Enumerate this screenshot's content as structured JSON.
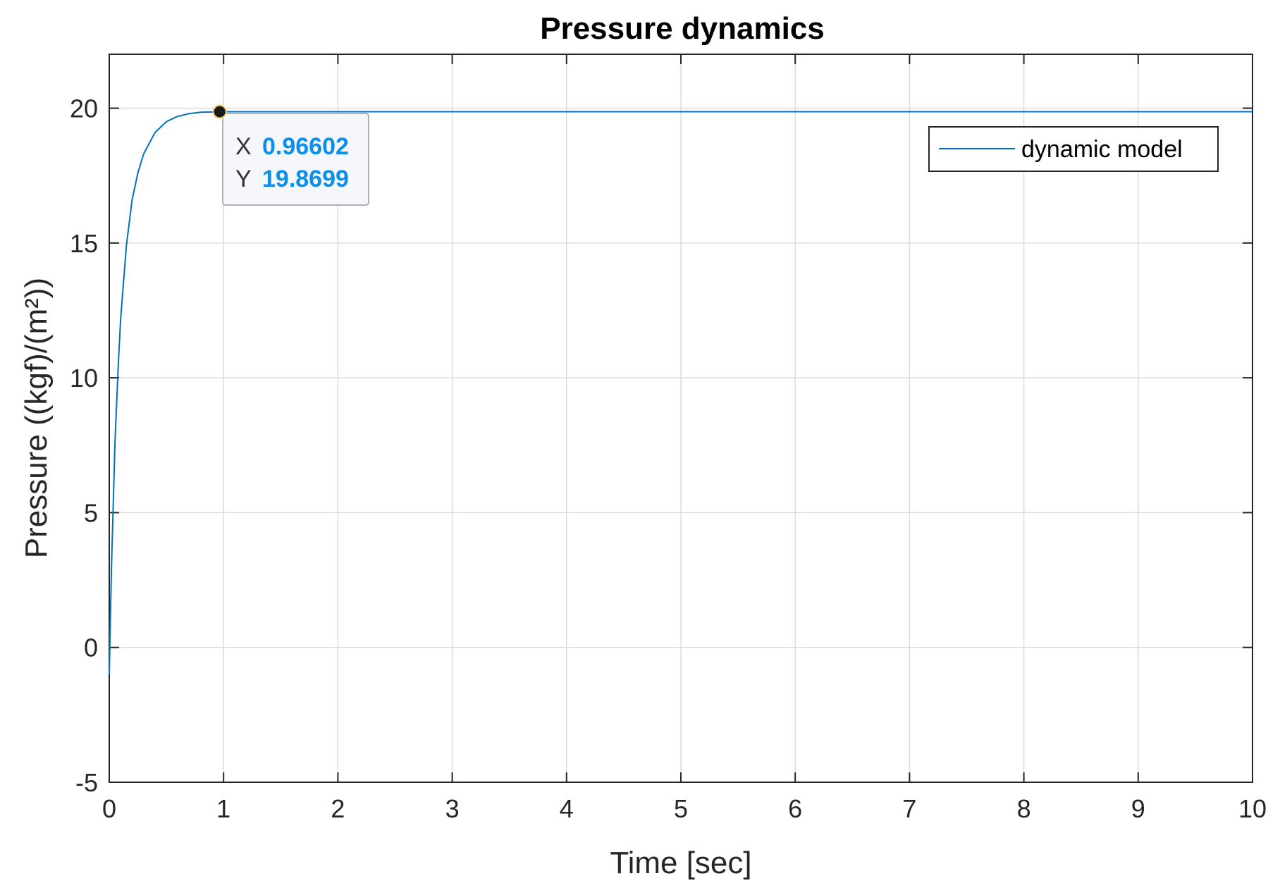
{
  "chart_data": {
    "type": "line",
    "title": "Pressure dynamics",
    "xlabel": "Time [sec]",
    "ylabel": "Pressure ((kgf)/(m²))",
    "xlim": [
      0,
      10
    ],
    "ylim": [
      -5,
      22
    ],
    "xticks": [
      "0",
      "1",
      "2",
      "3",
      "4",
      "5",
      "6",
      "7",
      "8",
      "9",
      "10"
    ],
    "yticks": [
      "-5",
      "0",
      "5",
      "10",
      "15",
      "20"
    ],
    "grid": true,
    "legend_position": "top-right",
    "colors": {
      "series": "#0072BD",
      "datatip_value": "#0B8FEA",
      "axis": "#262626",
      "grid": "#dcdcdc"
    },
    "series": [
      {
        "name": "dynamic model",
        "x": [
          0,
          0.02,
          0.05,
          0.08,
          0.1,
          0.15,
          0.2,
          0.25,
          0.3,
          0.4,
          0.5,
          0.6,
          0.7,
          0.8,
          0.9,
          0.96602,
          1.2,
          1.5,
          2,
          3,
          4,
          5,
          6,
          7,
          8,
          9,
          10
        ],
        "y": [
          -1,
          3.0,
          7.6,
          10.6,
          12.2,
          14.9,
          16.6,
          17.6,
          18.3,
          19.1,
          19.5,
          19.7,
          19.8,
          19.85,
          19.86,
          19.8699,
          19.87,
          19.87,
          19.87,
          19.87,
          19.87,
          19.87,
          19.87,
          19.87,
          19.87,
          19.87,
          19.87
        ]
      }
    ],
    "datatip": {
      "x_key": "X",
      "x_value": "0.96602",
      "y_key": "Y",
      "y_value": "19.8699",
      "x": 0.96602,
      "y": 19.8699
    }
  }
}
